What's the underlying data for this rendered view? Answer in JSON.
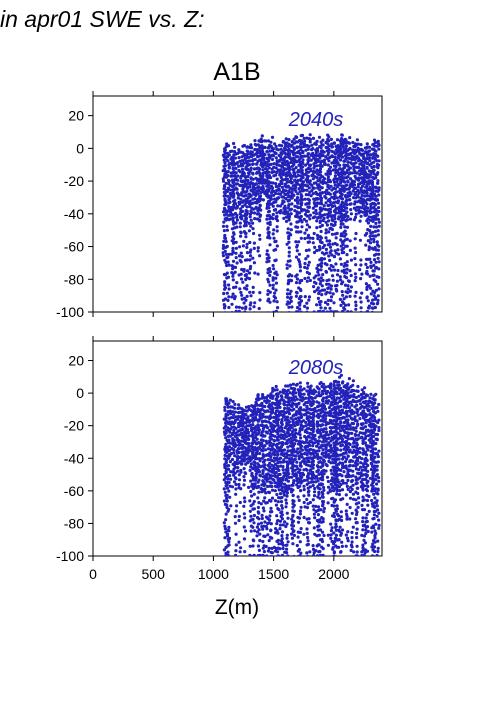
{
  "page": {
    "header_text": "in apr01 SWE vs. Z:",
    "chart_title": "A1B",
    "xlabel": "Z(m)"
  },
  "chart_data": [
    {
      "type": "scatter",
      "panel_label": "2040s",
      "xlim": [
        0,
        2400
      ],
      "ylim": [
        -100,
        32
      ],
      "x_ticks": [
        0,
        500,
        1000,
        1500,
        2000
      ],
      "y_ticks": [
        20,
        0,
        -20,
        -40,
        -60,
        -80,
        -100
      ],
      "x_tick_labels_visible": false,
      "point_color": "#2222bb",
      "x_range_of_points": [
        1090,
        2370
      ],
      "approx_ymax_envelope": [
        [
          1100,
          5
        ],
        [
          1200,
          2
        ],
        [
          1400,
          8
        ],
        [
          1600,
          6
        ],
        [
          1800,
          9
        ],
        [
          2000,
          8
        ],
        [
          2100,
          10
        ],
        [
          2200,
          6
        ],
        [
          2300,
          4
        ],
        [
          2370,
          6
        ]
      ],
      "dense_band_y": [
        -45,
        8
      ]
    },
    {
      "type": "scatter",
      "panel_label": "2080s",
      "xlim": [
        0,
        2400
      ],
      "ylim": [
        -100,
        32
      ],
      "x_ticks": [
        0,
        500,
        1000,
        1500,
        2000
      ],
      "x_tick_labels": [
        "0",
        "500",
        "1000",
        "1500",
        "2000"
      ],
      "y_ticks": [
        20,
        0,
        -20,
        -40,
        -60,
        -80,
        -100
      ],
      "x_tick_labels_visible": true,
      "point_color": "#2222bb",
      "x_range_of_points": [
        1100,
        2370
      ],
      "approx_ymax_envelope": [
        [
          1110,
          0
        ],
        [
          1250,
          -10
        ],
        [
          1400,
          2
        ],
        [
          1550,
          5
        ],
        [
          1700,
          10
        ],
        [
          1800,
          6
        ],
        [
          2000,
          10
        ],
        [
          2100,
          12
        ],
        [
          2250,
          4
        ],
        [
          2370,
          -2
        ]
      ],
      "dense_band_y": [
        -60,
        5
      ]
    }
  ]
}
